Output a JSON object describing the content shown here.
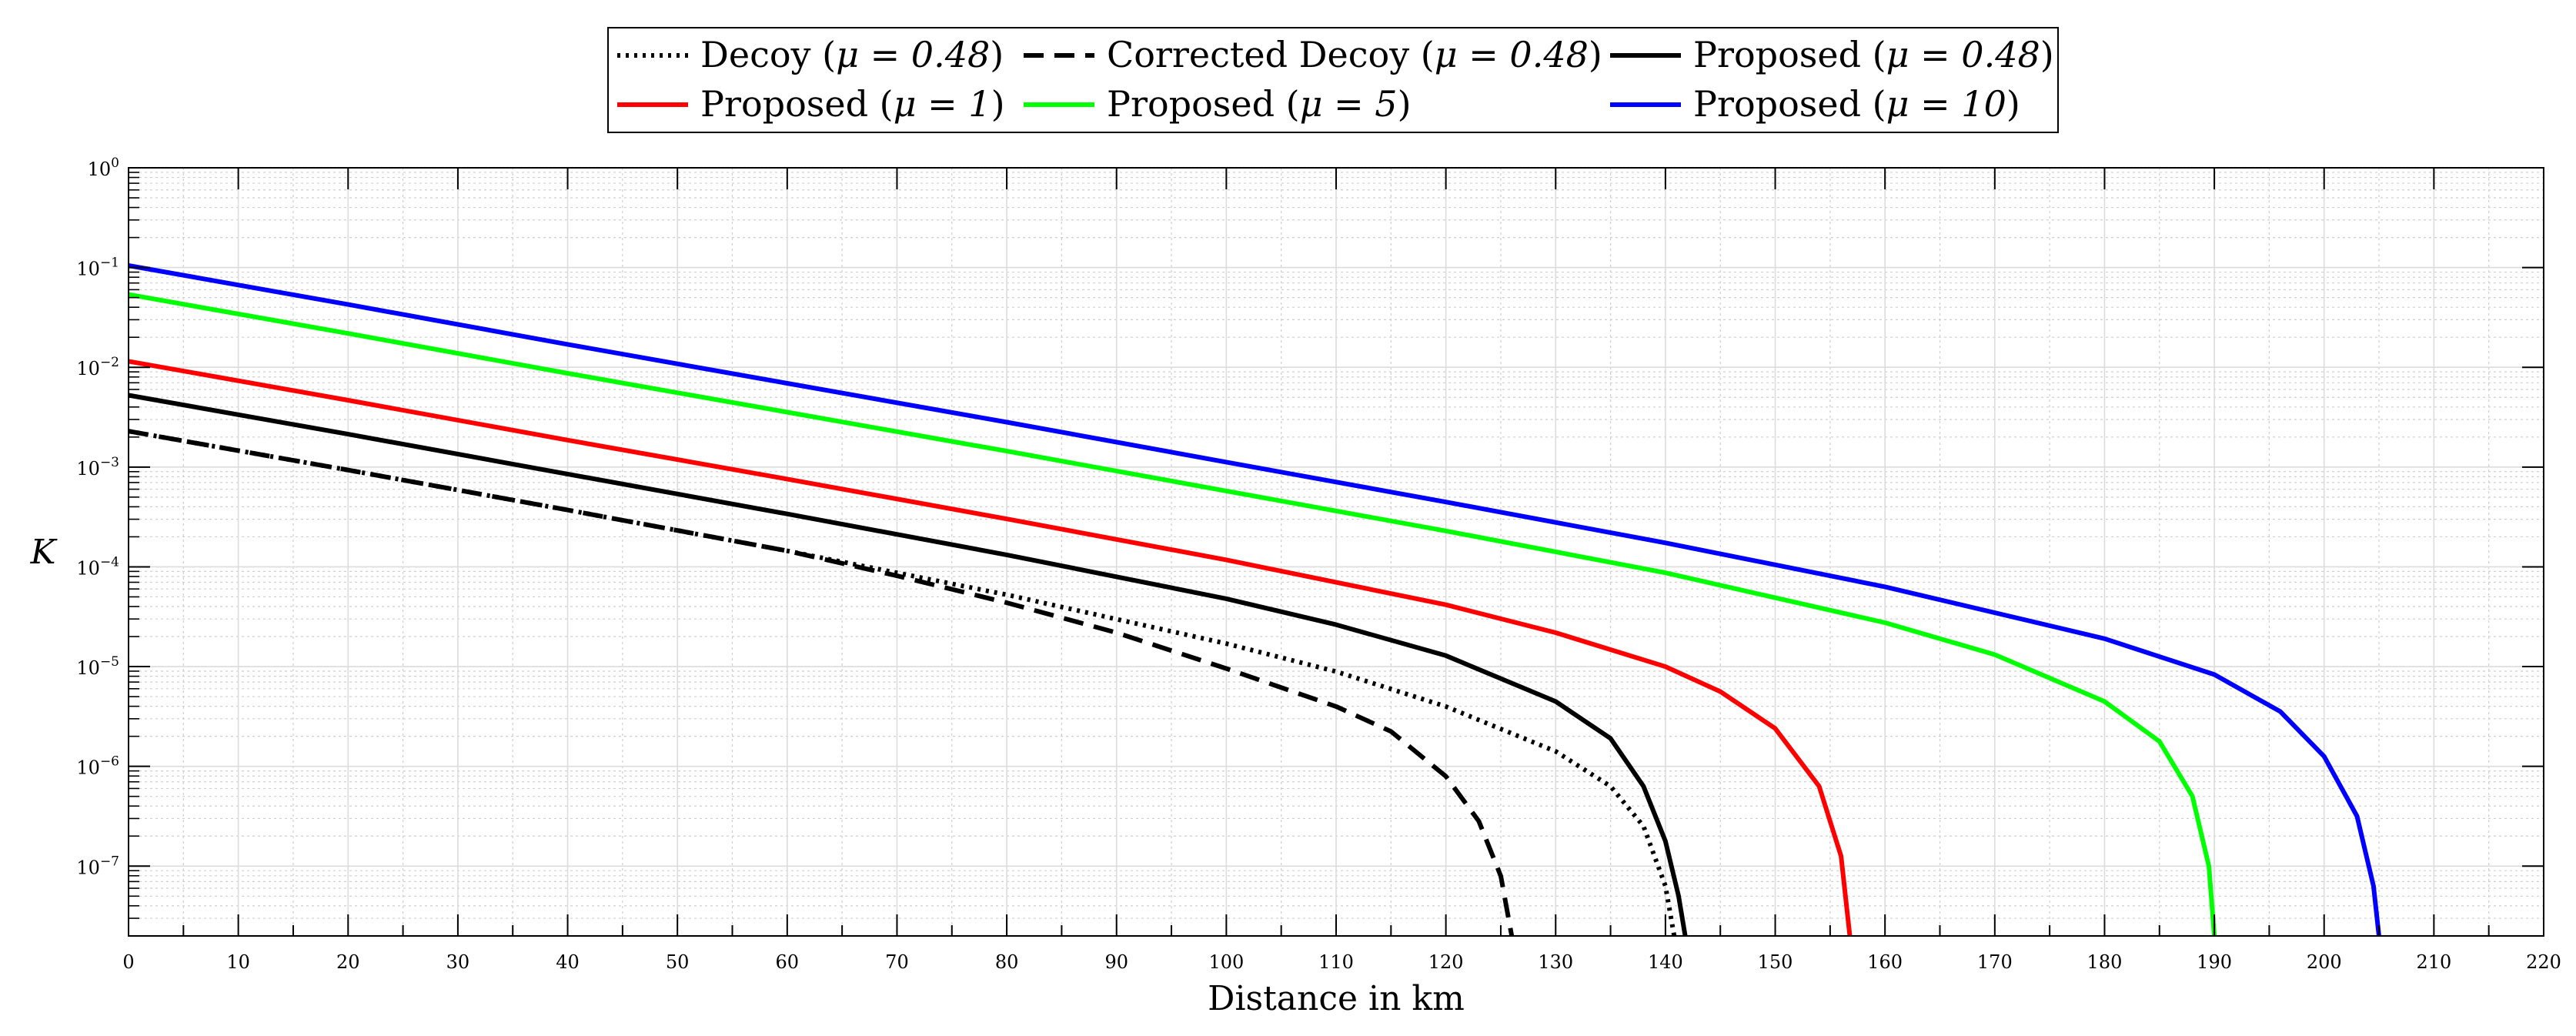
{
  "chart_data": {
    "type": "line",
    "title": "",
    "xlabel": "Distance in km",
    "ylabel": "K",
    "xlim": [
      0,
      220
    ],
    "ylim_log10": [
      -7.7,
      0
    ],
    "y_scale": "log",
    "grid": true,
    "minor_grid": true,
    "legend_position": "top-center",
    "x_ticks": [
      0,
      10,
      20,
      30,
      40,
      50,
      60,
      70,
      80,
      90,
      100,
      110,
      120,
      130,
      140,
      150,
      160,
      170,
      180,
      190,
      200,
      210,
      220
    ],
    "y_ticks": [
      {
        "exp": 0,
        "base": "10",
        "sup": "0"
      },
      {
        "exp": -1,
        "base": "10",
        "sup": "−1"
      },
      {
        "exp": -2,
        "base": "10",
        "sup": "−2"
      },
      {
        "exp": -3,
        "base": "10",
        "sup": "−3"
      },
      {
        "exp": -4,
        "base": "10",
        "sup": "−4"
      },
      {
        "exp": -5,
        "base": "10",
        "sup": "−5"
      },
      {
        "exp": -6,
        "base": "10",
        "sup": "−6"
      },
      {
        "exp": -7,
        "base": "10",
        "sup": "−7"
      }
    ],
    "series": [
      {
        "name": "Decoy (μ = 0.48)",
        "label_prefix": "Decoy (",
        "mu_label": "μ = 0.48",
        "label_suffix": ")",
        "color": "#000000",
        "style": "dotted",
        "legend_row": 0,
        "legend_col": 0,
        "points": [
          [
            0,
            -2.64
          ],
          [
            20,
            -3.03
          ],
          [
            40,
            -3.43
          ],
          [
            60,
            -3.84
          ],
          [
            80,
            -4.28
          ],
          [
            100,
            -4.77
          ],
          [
            110,
            -5.05
          ],
          [
            120,
            -5.4
          ],
          [
            130,
            -5.85
          ],
          [
            135,
            -6.2
          ],
          [
            138,
            -6.6
          ],
          [
            140,
            -7.2
          ],
          [
            140.8,
            -7.7
          ]
        ]
      },
      {
        "name": "Corrected Decoy (μ = 0.48)",
        "label_prefix": "Corrected Decoy (",
        "mu_label": "μ = 0.48",
        "label_suffix": ")",
        "color": "#000000",
        "style": "dashed",
        "legend_row": 0,
        "legend_col": 1,
        "points": [
          [
            0,
            -2.64
          ],
          [
            20,
            -3.03
          ],
          [
            40,
            -3.43
          ],
          [
            60,
            -3.84
          ],
          [
            70,
            -4.09
          ],
          [
            80,
            -4.36
          ],
          [
            90,
            -4.66
          ],
          [
            100,
            -5.02
          ],
          [
            110,
            -5.4
          ],
          [
            115,
            -5.65
          ],
          [
            120,
            -6.1
          ],
          [
            123,
            -6.55
          ],
          [
            125,
            -7.1
          ],
          [
            126,
            -7.7
          ]
        ]
      },
      {
        "name": "Proposed (μ = 0.48)",
        "label_prefix": "Proposed (",
        "mu_label": "μ = 0.48",
        "label_suffix": ")",
        "color": "#000000",
        "style": "solid",
        "legend_row": 0,
        "legend_col": 2,
        "points": [
          [
            0,
            -2.28
          ],
          [
            20,
            -2.67
          ],
          [
            40,
            -3.07
          ],
          [
            60,
            -3.47
          ],
          [
            80,
            -3.88
          ],
          [
            100,
            -4.32
          ],
          [
            110,
            -4.58
          ],
          [
            120,
            -4.89
          ],
          [
            130,
            -5.35
          ],
          [
            135,
            -5.72
          ],
          [
            138,
            -6.2
          ],
          [
            140,
            -6.75
          ],
          [
            141.2,
            -7.3
          ],
          [
            141.8,
            -7.7
          ]
        ]
      },
      {
        "name": "Proposed (μ = 1)",
        "label_prefix": "Proposed (",
        "mu_label": "μ = 1",
        "label_suffix": ")",
        "color": "#ff0000",
        "style": "solid",
        "legend_row": 1,
        "legend_col": 0,
        "points": [
          [
            0,
            -1.94
          ],
          [
            20,
            -2.33
          ],
          [
            40,
            -2.73
          ],
          [
            60,
            -3.12
          ],
          [
            80,
            -3.52
          ],
          [
            100,
            -3.93
          ],
          [
            120,
            -4.38
          ],
          [
            130,
            -4.66
          ],
          [
            140,
            -5.0
          ],
          [
            145,
            -5.25
          ],
          [
            150,
            -5.62
          ],
          [
            154,
            -6.2
          ],
          [
            156,
            -6.9
          ],
          [
            156.8,
            -7.7
          ]
        ]
      },
      {
        "name": "Proposed (μ = 5)",
        "label_prefix": "Proposed (",
        "mu_label": "μ = 5",
        "label_suffix": ")",
        "color": "#00ff00",
        "style": "solid",
        "legend_row": 1,
        "legend_col": 1,
        "points": [
          [
            0,
            -1.27
          ],
          [
            20,
            -1.66
          ],
          [
            40,
            -2.06
          ],
          [
            60,
            -2.45
          ],
          [
            80,
            -2.84
          ],
          [
            100,
            -3.24
          ],
          [
            120,
            -3.64
          ],
          [
            140,
            -4.06
          ],
          [
            160,
            -4.56
          ],
          [
            170,
            -4.88
          ],
          [
            180,
            -5.35
          ],
          [
            185,
            -5.75
          ],
          [
            188,
            -6.3
          ],
          [
            189.5,
            -7.0
          ],
          [
            190,
            -7.7
          ]
        ]
      },
      {
        "name": "Proposed (μ = 10)",
        "label_prefix": "Proposed (",
        "mu_label": "μ = 10",
        "label_suffix": ")",
        "color": "#0000ff",
        "style": "solid",
        "legend_row": 1,
        "legend_col": 2,
        "points": [
          [
            0,
            -0.98
          ],
          [
            20,
            -1.37
          ],
          [
            40,
            -1.77
          ],
          [
            60,
            -2.16
          ],
          [
            80,
            -2.55
          ],
          [
            100,
            -2.95
          ],
          [
            120,
            -3.35
          ],
          [
            140,
            -3.76
          ],
          [
            160,
            -4.2
          ],
          [
            180,
            -4.72
          ],
          [
            190,
            -5.08
          ],
          [
            196,
            -5.45
          ],
          [
            200,
            -5.9
          ],
          [
            203,
            -6.5
          ],
          [
            204.5,
            -7.2
          ],
          [
            205,
            -7.7
          ]
        ]
      }
    ]
  }
}
